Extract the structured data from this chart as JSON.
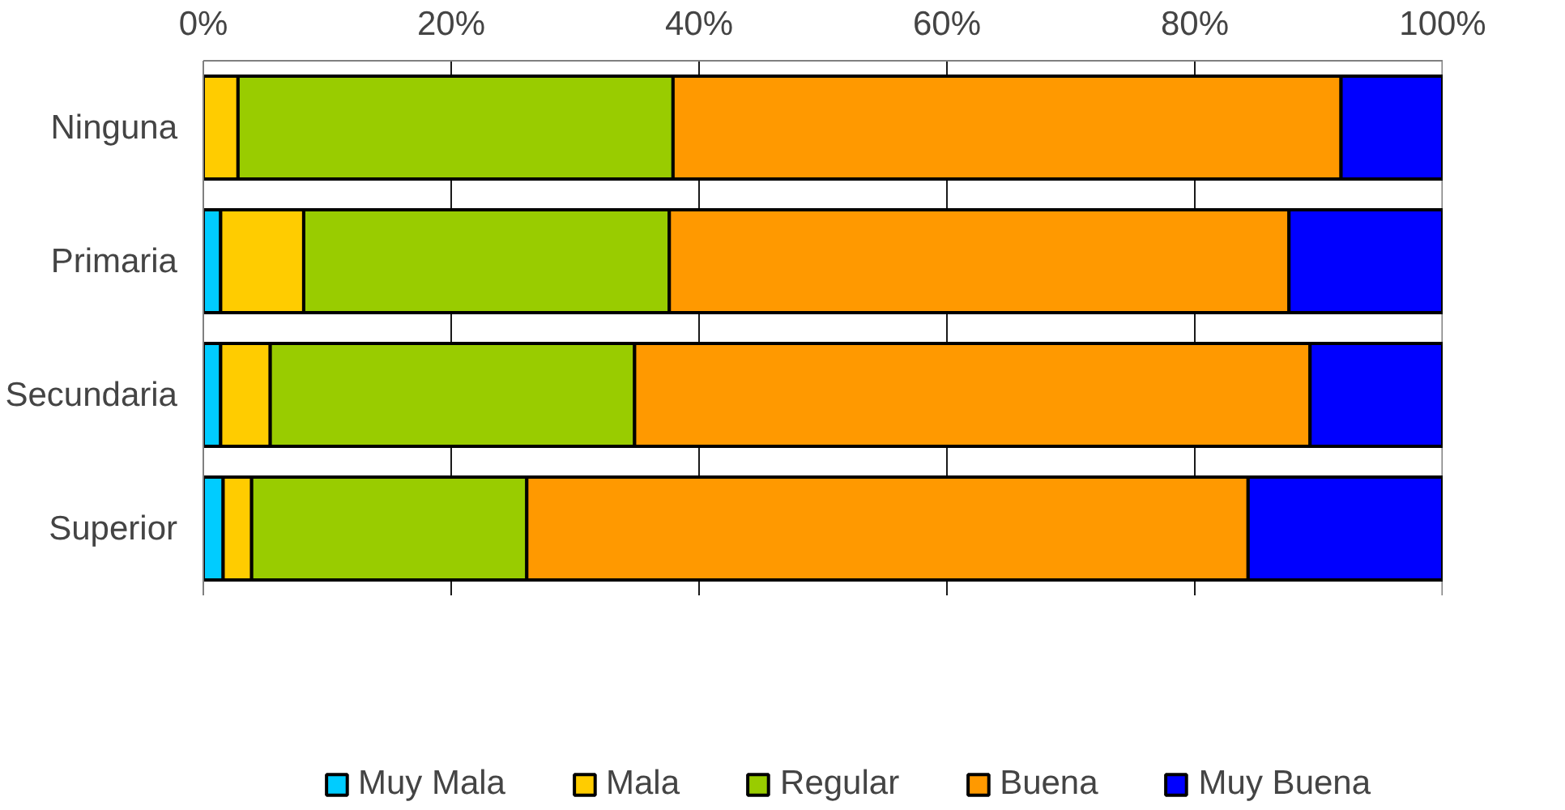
{
  "chart_data": {
    "type": "bar",
    "orientation": "horizontal",
    "stacked": true,
    "categories": [
      "Ninguna",
      "Primaria",
      "Secundaria",
      "Superior"
    ],
    "series": [
      {
        "name": "Muy Mala",
        "color": "#00ccff",
        "values": [
          0,
          1.4,
          1.4,
          1.6
        ]
      },
      {
        "name": "Mala",
        "color": "#ffcc00",
        "values": [
          2.8,
          6.7,
          4.0,
          2.3
        ]
      },
      {
        "name": "Regular",
        "color": "#99cc00",
        "values": [
          35.1,
          29.5,
          29.4,
          22.2
        ]
      },
      {
        "name": "Buena",
        "color": "#ff9900",
        "values": [
          53.9,
          50.0,
          54.5,
          58.2
        ]
      },
      {
        "name": "Muy Buena",
        "color": "#0000ff",
        "values": [
          8.2,
          12.4,
          10.7,
          15.7
        ]
      }
    ],
    "xlim": [
      0,
      100
    ],
    "xticks": [
      {
        "value": 0,
        "label": "0%"
      },
      {
        "value": 20,
        "label": "20%"
      },
      {
        "value": 40,
        "label": "40%"
      },
      {
        "value": 60,
        "label": "60%"
      },
      {
        "value": 80,
        "label": "80%"
      },
      {
        "value": 100,
        "label": "100%"
      }
    ],
    "grid": "x",
    "legend": "bottom"
  }
}
